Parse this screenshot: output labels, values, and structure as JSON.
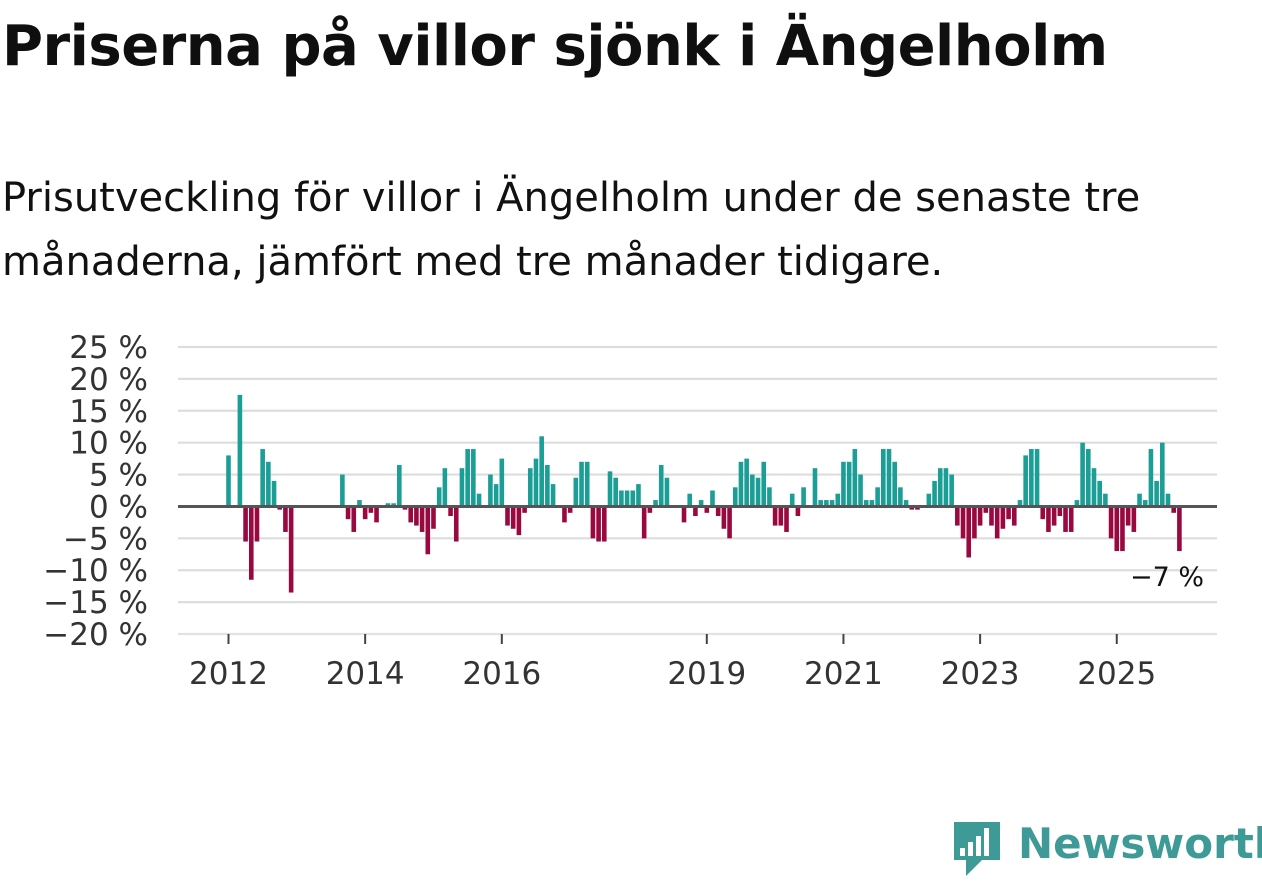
{
  "title": "Priserna på villor sjönk i Ängelholm",
  "subtitle": "Prisutveckling för villor i Ängelholm under de senaste tre månaderna, jämfört med tre månader tidigare.",
  "brand": {
    "name": "Newsworthy",
    "icon": "newsworthy-logo-icon",
    "color": "#3e9a96"
  },
  "colors": {
    "positive": "#1a9e96",
    "negative": "#99093f",
    "grid": "#dddddd",
    "zero_line": "#555555"
  },
  "chart_data": {
    "type": "bar",
    "title": "Priserna på villor sjönk i Ängelholm",
    "xlabel": "",
    "ylabel": "",
    "ylim": [
      -20,
      25
    ],
    "yticks": [
      25,
      20,
      15,
      10,
      5,
      0,
      -5,
      -10,
      -15,
      -20
    ],
    "ytick_labels": [
      "25 %",
      "20 %",
      "15 %",
      "10 %",
      "5 %",
      "0 %",
      "−5 %",
      "−10 %",
      "−15 %",
      "−20 %"
    ],
    "xticks": [
      {
        "label": "2012",
        "index": 0
      },
      {
        "label": "2014",
        "index": 24
      },
      {
        "label": "2016",
        "index": 48
      },
      {
        "label": "2019",
        "index": 84
      },
      {
        "label": "2021",
        "index": 108
      },
      {
        "label": "2023",
        "index": 132
      },
      {
        "label": "2025",
        "index": 156
      }
    ],
    "start": "2012-01",
    "frequency": "monthly",
    "values": [
      8,
      0,
      17.5,
      -5.5,
      -11.5,
      -5.5,
      9,
      7,
      4,
      -0.5,
      -4,
      -13.5,
      0,
      0,
      0,
      0,
      0,
      0,
      0,
      0,
      5,
      -2,
      -4,
      1,
      -2,
      -1,
      -2.5,
      0,
      0.5,
      0.5,
      6.5,
      -0.5,
      -2.5,
      -3,
      -4,
      -7.5,
      -3.5,
      3,
      6,
      -1.5,
      -5.5,
      6,
      9,
      9,
      2,
      0,
      5,
      3.5,
      7.5,
      -3,
      -3.5,
      -4.5,
      -1,
      6,
      7.5,
      11,
      6.5,
      3.5,
      0,
      -2.5,
      -1,
      4.5,
      7,
      7,
      -5,
      -5.5,
      -5.5,
      5.5,
      4.5,
      2.5,
      2.5,
      2.5,
      3.5,
      -5,
      -1,
      1,
      6.5,
      4.5,
      0,
      0,
      -2.5,
      2,
      -1.5,
      1,
      -1,
      2.5,
      -1.5,
      -3.5,
      -5,
      3,
      7,
      7.5,
      5,
      4.5,
      7,
      3,
      -3,
      -3,
      -4,
      2,
      -1.5,
      3,
      0,
      6,
      1,
      1,
      1,
      2,
      7,
      7,
      9,
      5,
      1,
      1,
      3,
      9,
      9,
      7,
      3,
      1,
      -0.5,
      -0.5,
      0,
      2,
      4,
      6,
      6,
      5,
      -3,
      -5,
      -8,
      -5,
      -3,
      -1,
      -3,
      -5,
      -3.5,
      -2,
      -3,
      1,
      8,
      9,
      9,
      -2,
      -4,
      -3,
      -1.5,
      -4,
      -4,
      1,
      10,
      9,
      6,
      4,
      2,
      -5,
      -7,
      -7,
      -3,
      -4,
      2,
      1,
      9,
      4,
      10,
      2,
      -1,
      -7
    ],
    "last_value_label": "−7 %"
  }
}
